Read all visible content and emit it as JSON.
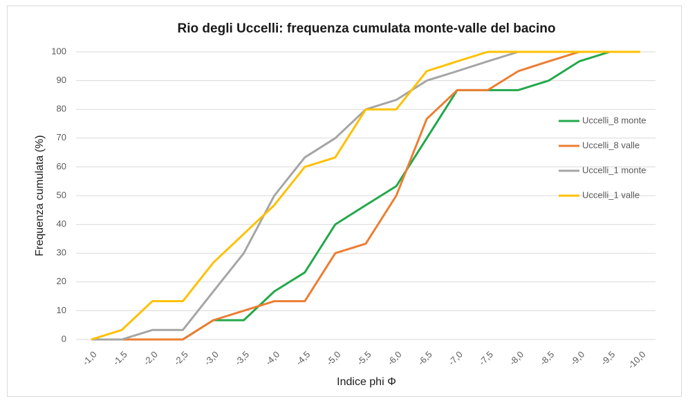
{
  "chart_data": {
    "type": "line",
    "title": "Rio degli Uccelli: frequenza cumulata monte-valle del bacino",
    "x_label": "Indice phi Φ",
    "y_label": "Frequenza cumulata (%)",
    "categories": [
      "-1,0",
      "-1,5",
      "-2,0",
      "-2,5",
      "-3,0",
      "-3,5",
      "-4,0",
      "-4,5",
      "-5,0",
      "-5,5",
      "-6,0",
      "-6,5",
      "-7,0",
      "-7,5",
      "-8,0",
      "-8,5",
      "-9,0",
      "-9,5",
      "-10,0"
    ],
    "series": [
      {
        "name": "Uccelli_8 monte",
        "color": "#22a84a",
        "values": [
          0,
          0,
          0,
          0,
          6.7,
          6.7,
          16.7,
          23.3,
          40,
          46.7,
          53.3,
          70,
          86.7,
          86.7,
          86.7,
          90,
          96.7,
          100,
          100
        ]
      },
      {
        "name": "Uccelli_8 valle",
        "color": "#ed7d31",
        "values": [
          0,
          0,
          0,
          0,
          6.7,
          10,
          13.3,
          13.3,
          30,
          33.3,
          50,
          76.7,
          86.7,
          86.7,
          93.3,
          96.7,
          100,
          100,
          100
        ]
      },
      {
        "name": "Uccelli_1 monte",
        "color": "#a5a5a5",
        "values": [
          0,
          0,
          3.3,
          3.3,
          16.7,
          30,
          50,
          63.3,
          70,
          80,
          83.3,
          90,
          93.3,
          96.7,
          100,
          100,
          100,
          100,
          100
        ]
      },
      {
        "name": "Uccelli_1 valle",
        "color": "#ffc000",
        "values": [
          0,
          3.3,
          13.3,
          13.3,
          26.7,
          36.7,
          46.7,
          60,
          63.3,
          80,
          80,
          93.3,
          96.7,
          100,
          100,
          100,
          100,
          100,
          100
        ]
      }
    ],
    "ylim": [
      0,
      100
    ],
    "yticks": [
      0,
      10,
      20,
      30,
      40,
      50,
      60,
      70,
      80,
      90,
      100
    ],
    "grid": true,
    "legend": "right"
  }
}
